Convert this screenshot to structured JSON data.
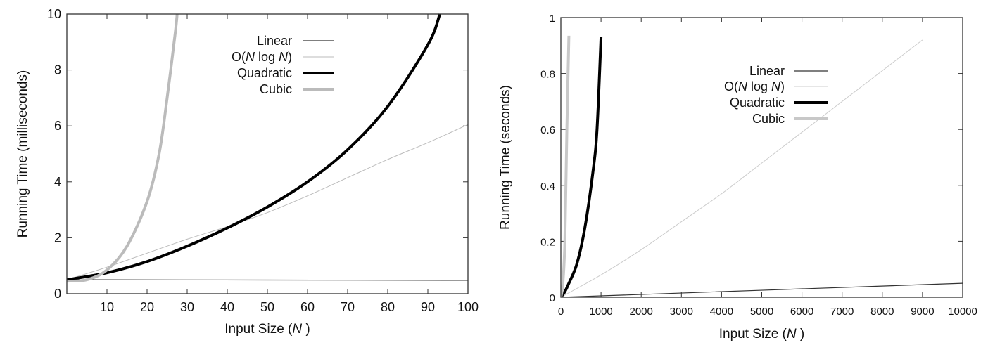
{
  "chart_data": [
    {
      "type": "line",
      "xlabel": "Input Size (N )",
      "ylabel": "Running Time (milliseconds)",
      "xlim": [
        0,
        100
      ],
      "ylim": [
        0,
        10
      ],
      "xticks": [
        10,
        20,
        30,
        40,
        50,
        60,
        70,
        80,
        90,
        100
      ],
      "yticks": [
        0,
        2,
        4,
        6,
        8,
        10
      ],
      "grid": false,
      "legend_placement": "top-center",
      "series": [
        {
          "name": "Linear",
          "color": "#333333",
          "x": [
            0,
            100
          ],
          "y": [
            0.5,
            0.48
          ]
        },
        {
          "name": "O(N log N)",
          "color": "#bbbbbb",
          "x": [
            0,
            10,
            20,
            30,
            40,
            50,
            60,
            70,
            80,
            90,
            100
          ],
          "y": [
            0.5,
            0.95,
            1.45,
            1.95,
            2.4,
            2.9,
            3.5,
            4.15,
            4.8,
            5.4,
            6.05
          ]
        },
        {
          "name": "Quadratic",
          "color": "#000000",
          "x": [
            0,
            10,
            20,
            30,
            40,
            50,
            60,
            70,
            80,
            90,
            93
          ],
          "y": [
            0.5,
            0.75,
            1.15,
            1.7,
            2.35,
            3.1,
            4.0,
            5.15,
            6.7,
            8.9,
            10
          ]
        },
        {
          "name": "Cubic",
          "color": "#bbbbbb",
          "x": [
            0,
            5,
            10,
            15,
            20,
            23,
            25,
            27,
            27.5
          ],
          "y": [
            0.45,
            0.5,
            0.85,
            1.7,
            3.3,
            5.0,
            7.0,
            9.3,
            10
          ]
        }
      ]
    },
    {
      "type": "line",
      "xlabel": "Input Size (N )",
      "ylabel": "Running Time (seconds)",
      "xlim": [
        0,
        10000
      ],
      "ylim": [
        0,
        1
      ],
      "xticks": [
        0,
        1000,
        2000,
        3000,
        4000,
        5000,
        6000,
        7000,
        8000,
        9000,
        10000
      ],
      "yticks": [
        0,
        0.2,
        0.4,
        0.6,
        0.8,
        1
      ],
      "grid": false,
      "legend_placement": "top-center",
      "series": [
        {
          "name": "Linear",
          "color": "#333333",
          "x": [
            0,
            10000
          ],
          "y": [
            0,
            0.05
          ]
        },
        {
          "name": "O(N log N)",
          "color": "#cccccc",
          "x": [
            0,
            1000,
            2000,
            3000,
            4000,
            5000,
            6000,
            7000,
            8000,
            9000
          ],
          "y": [
            0,
            0.08,
            0.17,
            0.27,
            0.37,
            0.48,
            0.59,
            0.7,
            0.81,
            0.92
          ]
        },
        {
          "name": "Quadratic",
          "color": "#000000",
          "x": [
            0,
            100,
            200,
            400,
            600,
            800,
            900,
            1000
          ],
          "y": [
            0,
            0.02,
            0.05,
            0.12,
            0.25,
            0.45,
            0.6,
            0.93
          ]
        },
        {
          "name": "Cubic",
          "color": "#c8c8c8",
          "x": [
            0,
            50,
            100,
            150,
            200
          ],
          "y": [
            0,
            0.05,
            0.2,
            0.6,
            0.935
          ]
        }
      ]
    }
  ]
}
